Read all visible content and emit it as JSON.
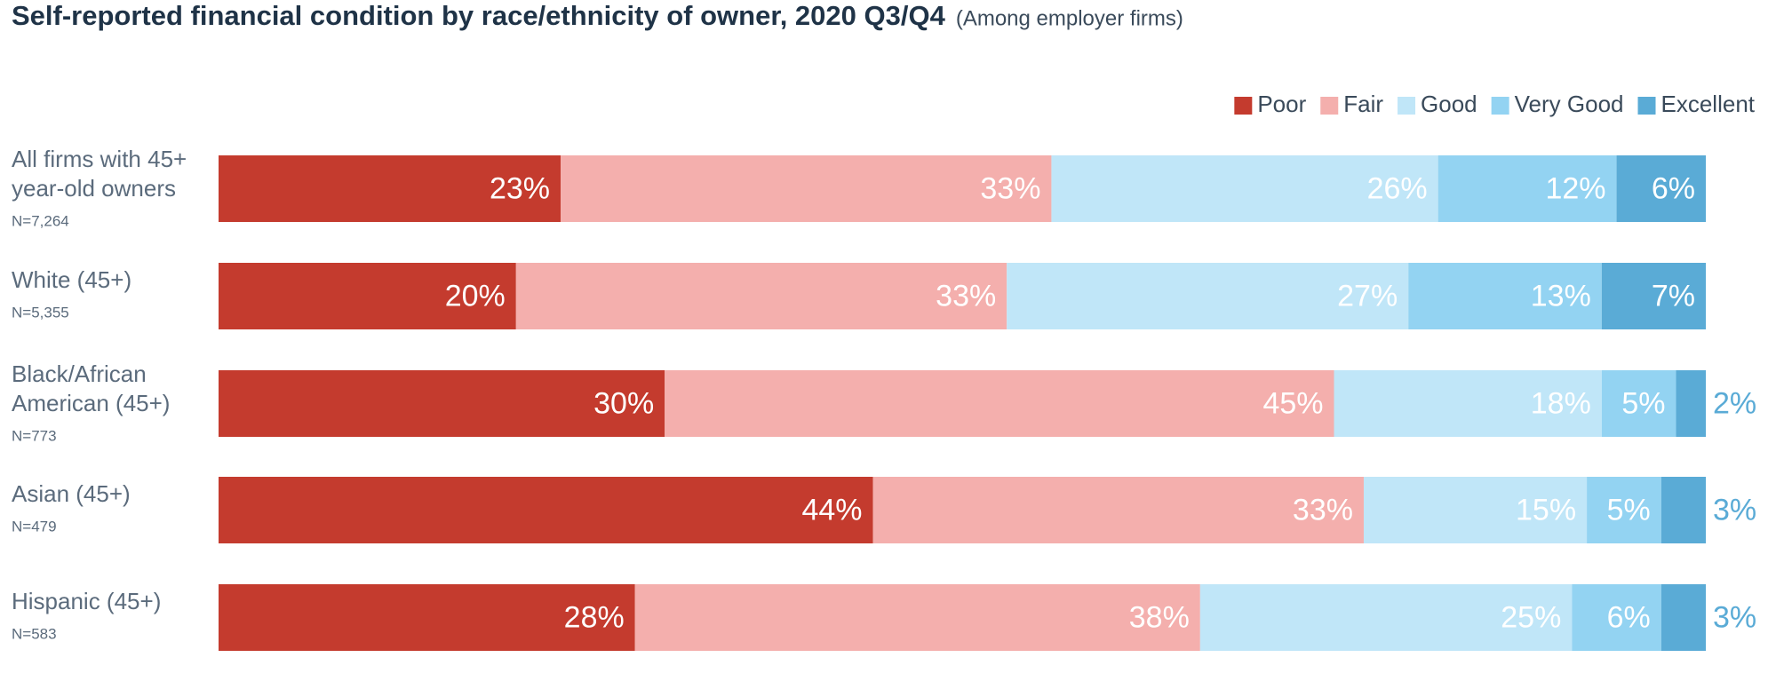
{
  "chart_data": {
    "type": "stacked-bar-horizontal",
    "title": "Self-reported financial condition by race/ethnicity of owner, 2020 Q3/Q4",
    "subtitle": "(Among employer firms)",
    "categories": [
      [
        "All firms with 45+",
        "year-old owners"
      ],
      [
        "White (45+)"
      ],
      [
        "Black/African",
        "American (45+)"
      ],
      [
        "Asian (45+)"
      ],
      [
        "Hispanic (45+)"
      ]
    ],
    "sample_sizes": [
      "N=7,264",
      "N=5,355",
      "N=773",
      "N=479",
      "N=583"
    ],
    "legend": "top-right",
    "series": [
      {
        "name": "Poor",
        "color": "#c43b2e",
        "values": [
          23,
          20,
          30,
          44,
          28
        ],
        "value_labels": [
          "23%",
          "20%",
          "30%",
          "44%",
          "28%"
        ]
      },
      {
        "name": "Fair",
        "color": "#f4afad",
        "values": [
          33,
          33,
          45,
          33,
          38
        ],
        "value_labels": [
          "33%",
          "33%",
          "45%",
          "33%",
          "38%"
        ]
      },
      {
        "name": "Good",
        "color": "#c0e6f8",
        "values": [
          26,
          27,
          18,
          15,
          25
        ],
        "value_labels": [
          "26%",
          "27%",
          "18%",
          "15%",
          "25%"
        ]
      },
      {
        "name": "Very Good",
        "color": "#93d3f2",
        "values": [
          12,
          13,
          5,
          5,
          6
        ],
        "value_labels": [
          "12%",
          "13%",
          "5%",
          "5%",
          "6%"
        ]
      },
      {
        "name": "Excellent",
        "color": "#5aabd6",
        "values": [
          6,
          7,
          2,
          3,
          3
        ],
        "value_labels": [
          "6%",
          "7%",
          "2%",
          "3%",
          "3%"
        ]
      }
    ]
  }
}
